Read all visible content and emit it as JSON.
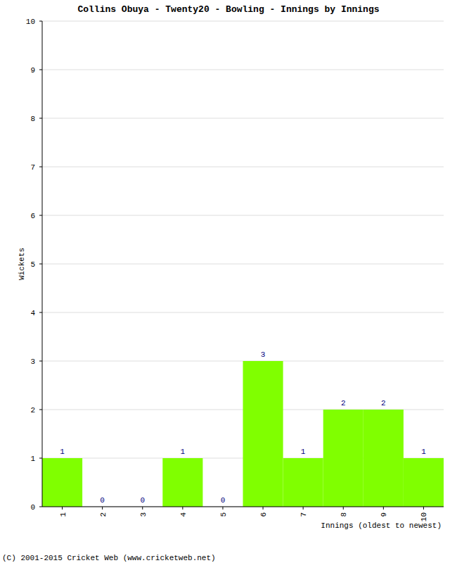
{
  "chart_data": {
    "type": "bar",
    "title": "Collins Obuya - Twenty20 - Bowling - Innings by Innings",
    "x_label": "Innings (oldest to newest)",
    "y_label": "Wickets",
    "source": "(C) 2001-2015 Cricket Web (www.cricketweb.net)",
    "categories": [
      "1",
      "2",
      "3",
      "4",
      "5",
      "6",
      "7",
      "8",
      "9",
      "10"
    ],
    "values": [
      1,
      0,
      0,
      1,
      0,
      3,
      1,
      2,
      2,
      1
    ],
    "color": "#80ff00",
    "ylim": [
      0,
      10
    ],
    "yticks": [
      0,
      1,
      2,
      3,
      4,
      5,
      6,
      7,
      8,
      9,
      10
    ],
    "grid": true,
    "data_labels": true
  }
}
